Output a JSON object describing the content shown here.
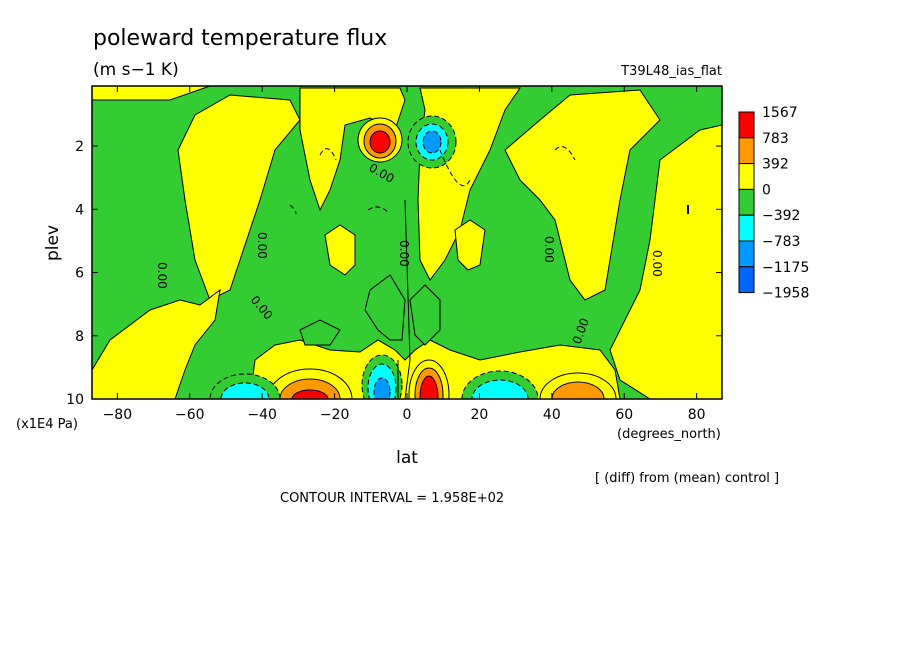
{
  "chart_data": {
    "type": "contour",
    "title": "poleward temperature flux",
    "units": "(m s−1 K)",
    "run_label": "T39L48_ias_flat",
    "xlabel": "lat",
    "xunits": "(degrees_north)",
    "ylabel": "plev",
    "yunits": "(x1E4 Pa)",
    "x_ticks": [
      "−80",
      "−60",
      "−40",
      "−20",
      "0",
      "20",
      "40",
      "60",
      "80"
    ],
    "x_tick_values": [
      -80,
      -60,
      -40,
      -20,
      0,
      20,
      40,
      60,
      80
    ],
    "y_ticks": [
      "2",
      "4",
      "6",
      "8",
      "10"
    ],
    "y_tick_values": [
      2,
      4,
      6,
      8,
      10
    ],
    "xlim": [
      -87,
      87
    ],
    "ylim": [
      10,
      0.1
    ],
    "note": "[ (diff) from (mean) control ]",
    "contour_interval_text": "CONTOUR INTERVAL = 1.958E+02",
    "contour_label": "0.00",
    "levels": [
      {
        "label": "1567",
        "color": "#ff0000"
      },
      {
        "label": "783",
        "color": "#ff9900"
      },
      {
        "label": "392",
        "color": "#ffff00"
      },
      {
        "label": "0",
        "color": "#33cc33"
      },
      {
        "label": "−392",
        "color": "#00ffff"
      },
      {
        "label": "−783",
        "color": "#0099ff"
      },
      {
        "label": "−1175",
        "color": "#0066ff"
      },
      {
        "label": "−1958",
        "color": ""
      }
    ],
    "colors": {
      "red": "#ff0000",
      "orange": "#ff9900",
      "yellow": "#ffff00",
      "green": "#33cc33",
      "cyan": "#00ffff",
      "lightblue": "#0099ff",
      "blue": "#0066ff"
    }
  }
}
